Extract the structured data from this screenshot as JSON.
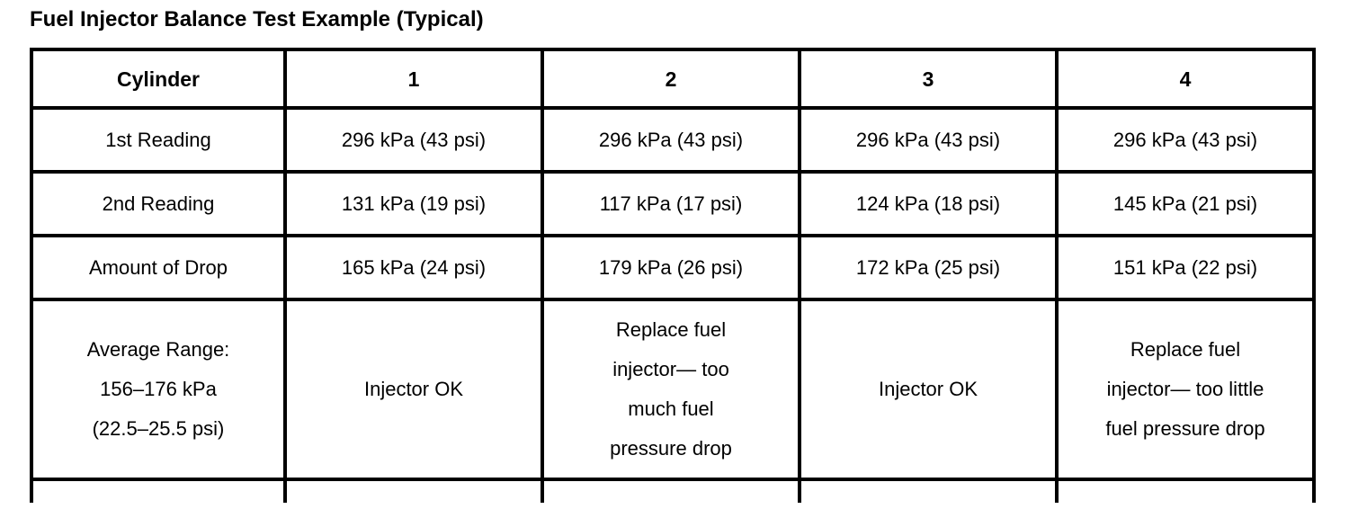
{
  "title": "Fuel Injector Balance Test Example (Typical)",
  "table": {
    "headers": [
      "Cylinder",
      "1",
      "2",
      "3",
      "4"
    ],
    "rows": [
      {
        "label": "1st Reading",
        "values": [
          "296 kPa (43 psi)",
          "296 kPa (43 psi)",
          "296 kPa (43 psi)",
          "296 kPa (43 psi)"
        ]
      },
      {
        "label": "2nd Reading",
        "values": [
          "131 kPa (19 psi)",
          "117 kPa (17 psi)",
          "124 kPa (18 psi)",
          "145 kPa (21 psi)"
        ]
      },
      {
        "label": "Amount of Drop",
        "values": [
          "165 kPa (24 psi)",
          "179 kPa (26 psi)",
          "172 kPa (25 psi)",
          "151 kPa (22 psi)"
        ]
      },
      {
        "label": "Average Range:\n156–176 kPa\n(22.5–25.5 psi)",
        "values": [
          "Injector OK",
          "Replace fuel\ninjector— too\nmuch fuel\npressure drop",
          "Injector OK",
          "Replace fuel\ninjector— too little\nfuel pressure drop"
        ]
      }
    ]
  },
  "colors": {
    "border": "#000000",
    "text": "#000000",
    "background": "#ffffff"
  }
}
